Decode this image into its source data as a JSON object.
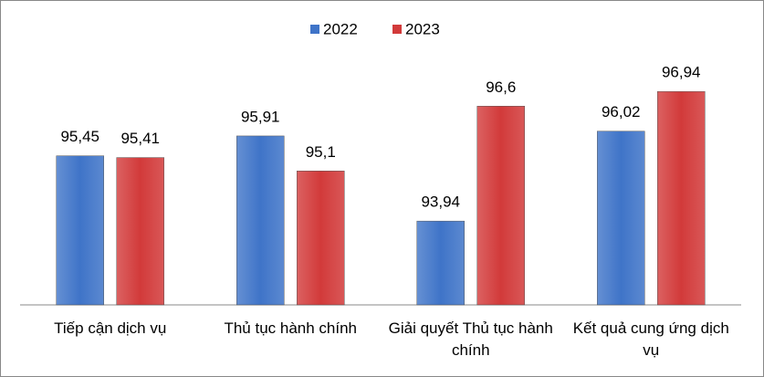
{
  "chart_data": {
    "type": "bar",
    "categories": [
      "Tiếp cận dịch vụ",
      "Thủ tục hành chính",
      "Giải quyết Thủ tục hành chính",
      "Kết quả cung ứng dịch vụ"
    ],
    "series": [
      {
        "name": "2022",
        "color": "#3f74c8",
        "values": [
          95.45,
          95.91,
          93.94,
          96.02
        ],
        "value_labels": [
          "95,45",
          "95,91",
          "93,94",
          "96,02"
        ]
      },
      {
        "name": "2023",
        "color": "#d23a3a",
        "values": [
          95.41,
          95.1,
          96.6,
          96.94
        ],
        "value_labels": [
          "95,41",
          "95,1",
          "96,6",
          "96,94"
        ]
      }
    ],
    "ylim": [
      92,
      98
    ],
    "legend": "top"
  }
}
